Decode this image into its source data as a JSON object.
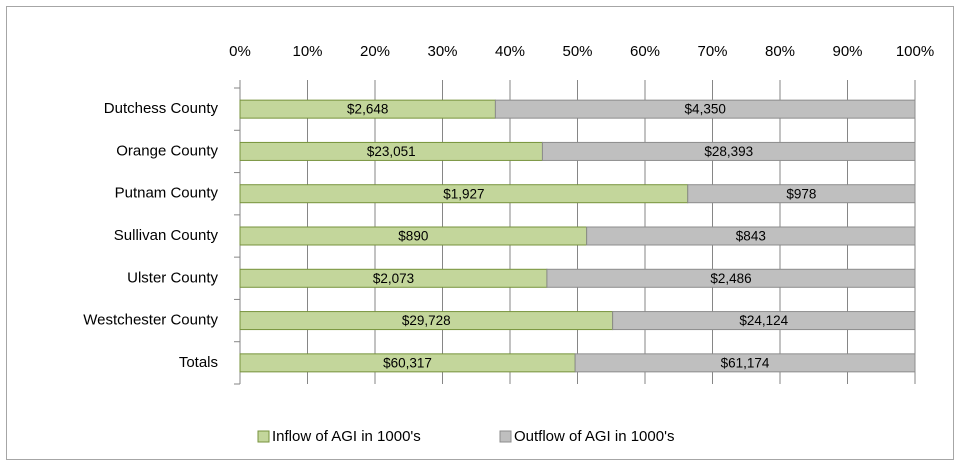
{
  "chart_data": {
    "type": "bar",
    "orientation": "horizontal",
    "stacking": "percent",
    "categories": [
      "Dutchess County",
      "Orange County",
      "Putnam County",
      "Sullivan County",
      "Ulster County",
      "Westchester County",
      "Totals"
    ],
    "series": [
      {
        "name": "Inflow of AGI in 1000's",
        "color": "#c3d69b",
        "values": [
          2648,
          23051,
          1927,
          890,
          2073,
          29728,
          60317
        ],
        "value_labels": [
          "$2,648",
          "$23,051",
          "$1,927",
          "$890",
          "$2,073",
          "$29,728",
          "$60,317"
        ]
      },
      {
        "name": "Outflow of AGI in 1000's",
        "color": "#bfbfbf",
        "values": [
          4350,
          28393,
          978,
          843,
          2486,
          24124,
          61174
        ],
        "value_labels": [
          "$4,350",
          "$28,393",
          "$978",
          "$843",
          "$2,486",
          "$24,124",
          "$61,174"
        ]
      }
    ],
    "xlim": [
      0,
      100
    ],
    "xticks": [
      {
        "value": 0,
        "label": "0%"
      },
      {
        "value": 10,
        "label": "10%"
      },
      {
        "value": 20,
        "label": "20%"
      },
      {
        "value": 30,
        "label": "30%"
      },
      {
        "value": 40,
        "label": "40%"
      },
      {
        "value": 50,
        "label": "50%"
      },
      {
        "value": 60,
        "label": "60%"
      },
      {
        "value": 70,
        "label": "70%"
      },
      {
        "value": 80,
        "label": "80%"
      },
      {
        "value": 90,
        "label": "90%"
      },
      {
        "value": 100,
        "label": "100%"
      }
    ],
    "grid": true,
    "legend": "bottom"
  }
}
